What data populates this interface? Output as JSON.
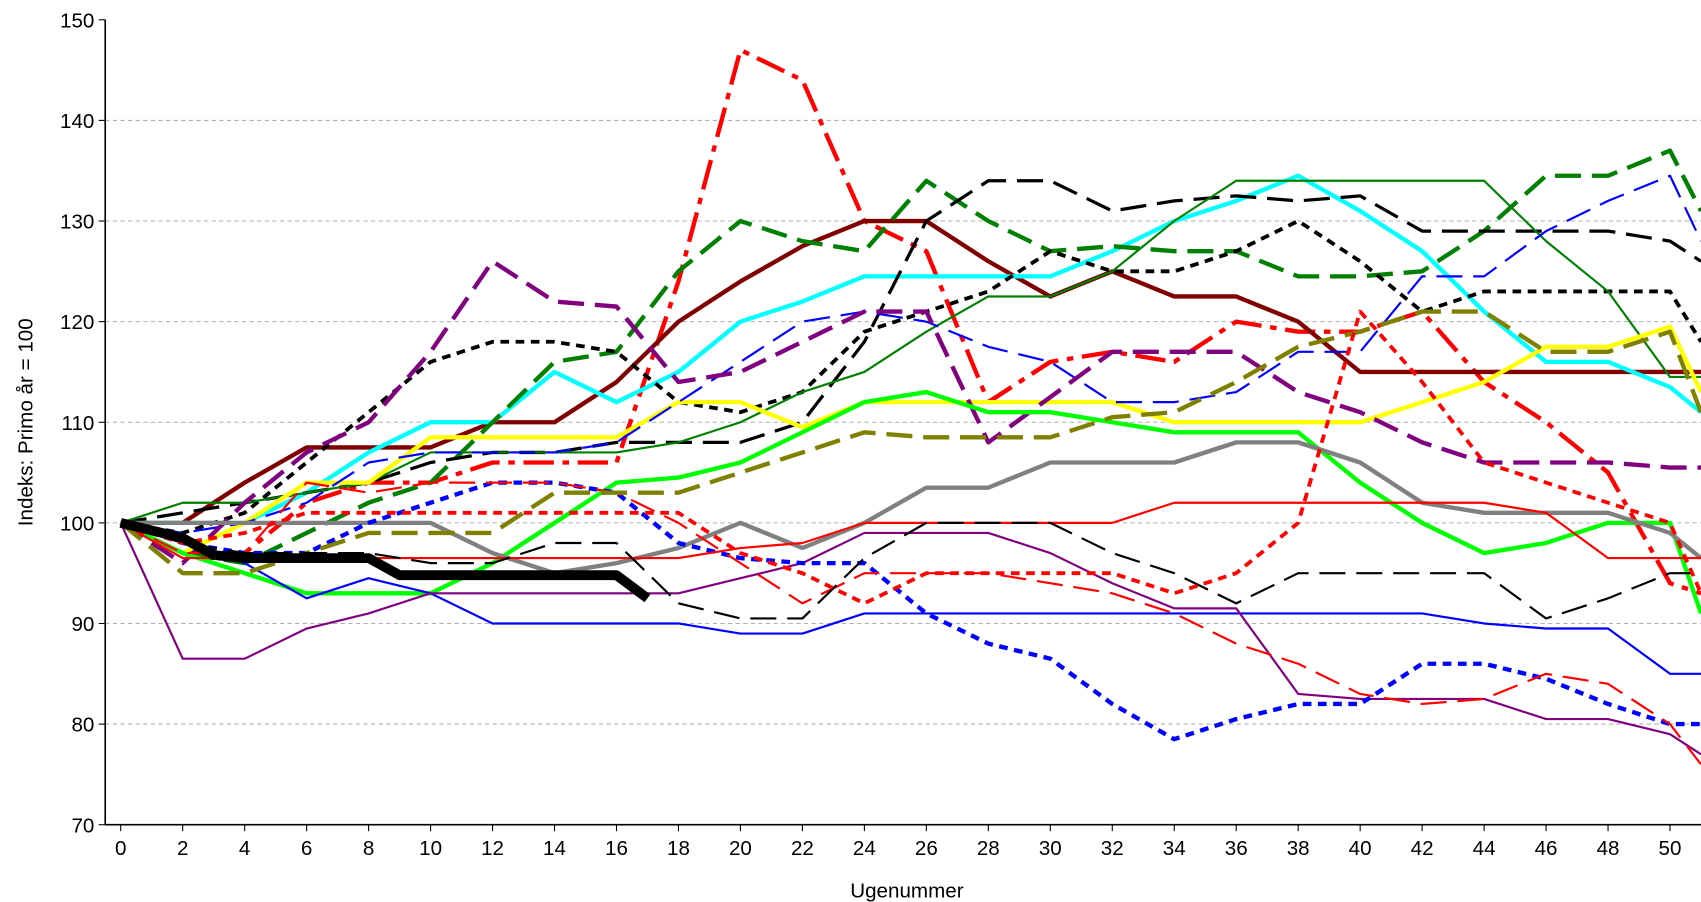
{
  "chart_data": {
    "type": "line",
    "xlabel": "Ugenummer",
    "ylabel": "Indeks: Primo år = 100",
    "x": [
      0,
      2,
      4,
      6,
      8,
      10,
      12,
      14,
      16,
      18,
      20,
      22,
      24,
      26,
      28,
      30,
      32,
      34,
      36,
      38,
      40,
      42,
      44,
      46,
      48,
      50,
      51
    ],
    "xlim": [
      -0.5,
      51
    ],
    "ylim": [
      70,
      150
    ],
    "xticks": [
      0,
      2,
      4,
      6,
      8,
      10,
      12,
      14,
      16,
      18,
      20,
      22,
      24,
      26,
      28,
      30,
      32,
      34,
      36,
      38,
      40,
      42,
      44,
      46,
      48,
      50
    ],
    "yticks": [
      70,
      80,
      90,
      100,
      110,
      120,
      130,
      140,
      150
    ],
    "grid": true,
    "series": [
      {
        "color": "#ff0000",
        "dash": "dashdot",
        "width": 4,
        "values": [
          100,
          97,
          97,
          102,
          104,
          104,
          106,
          106,
          106,
          124,
          147,
          144,
          130,
          127,
          112,
          116,
          117,
          116,
          120,
          119,
          119,
          121,
          114,
          110,
          105,
          94,
          93
        ]
      },
      {
        "color": "#800000",
        "dash": "solid",
        "width": 4,
        "values": [
          100,
          100,
          104,
          107.5,
          107.5,
          107.5,
          110,
          110,
          114,
          120,
          124,
          127.5,
          130,
          130,
          126,
          122.5,
          125,
          122.5,
          122.5,
          120,
          115,
          115,
          115,
          115,
          115,
          115,
          115
        ]
      },
      {
        "color": "#00ffff",
        "dash": "solid",
        "width": 4,
        "values": [
          100,
          100,
          100,
          103,
          107,
          110,
          110,
          115,
          112,
          115,
          120,
          122,
          124.5,
          124.5,
          124.5,
          124.5,
          127,
          130,
          132,
          134.5,
          131,
          127,
          121,
          116,
          116,
          113.5,
          111
        ]
      },
      {
        "color": "#008000",
        "dash": "longdash",
        "width": 4,
        "values": [
          100,
          97,
          96,
          99,
          102,
          104,
          110,
          116,
          117,
          125,
          130,
          128,
          127,
          134,
          130,
          127,
          127.5,
          127,
          127,
          124.5,
          124.5,
          125,
          129,
          134.5,
          134.5,
          137,
          131
        ]
      },
      {
        "color": "#000000",
        "dash": "longdash",
        "width": 3,
        "values": [
          100,
          101,
          102,
          103,
          104,
          106,
          107,
          107,
          108,
          108,
          108,
          110,
          118,
          130,
          134,
          134,
          131,
          132,
          132.5,
          132,
          132.5,
          129,
          129,
          129,
          129,
          128,
          126
        ]
      },
      {
        "color": "#000000",
        "dash": "dash",
        "width": 3.5,
        "values": [
          100,
          99,
          101,
          106,
          111,
          116,
          118,
          118,
          117,
          112,
          111,
          113,
          119,
          121,
          123,
          127,
          125,
          125,
          127,
          130,
          126,
          121,
          123,
          123,
          123,
          123,
          118
        ]
      },
      {
        "color": "#008000",
        "dash": "solid",
        "width": 2,
        "values": [
          100,
          102,
          102,
          103,
          104,
          107,
          107,
          107,
          107,
          108,
          110,
          113,
          115,
          119,
          122.5,
          122.5,
          125,
          130,
          134,
          134,
          134,
          134,
          134,
          128,
          123,
          114.5,
          114.5
        ]
      },
      {
        "color": "#ffff00",
        "dash": "solid",
        "width": 4,
        "values": [
          100,
          97,
          100,
          104,
          104,
          108.5,
          108.5,
          108.5,
          108.5,
          112,
          112,
          109.5,
          112,
          112,
          112,
          112,
          112,
          110,
          110,
          110,
          110,
          112,
          114,
          117.5,
          117.5,
          119.5,
          113
        ]
      },
      {
        "color": "#0000ff",
        "dash": "longdash",
        "width": 2,
        "values": [
          100,
          99,
          100,
          102,
          106,
          107,
          107,
          107,
          108,
          112,
          116,
          120,
          121,
          120,
          117.5,
          116,
          112,
          112,
          113,
          117,
          117,
          124.5,
          124.5,
          129,
          132,
          134.5,
          128
        ]
      },
      {
        "color": "#800080",
        "dash": "longdash",
        "width": 4,
        "values": [
          100,
          96,
          102,
          107,
          110,
          117,
          126,
          122,
          121.5,
          114,
          115,
          118,
          121,
          121,
          108,
          112.5,
          117,
          117,
          117,
          113,
          111,
          108,
          106,
          106,
          106,
          105.5,
          105.5
        ]
      },
      {
        "color": "#00ff00",
        "dash": "solid",
        "width": 4,
        "values": [
          100,
          97,
          95,
          93,
          93,
          93,
          96,
          100,
          104,
          104.5,
          106,
          109,
          112,
          113,
          111,
          111,
          110,
          109,
          109,
          109,
          104,
          100,
          97,
          98,
          100,
          100,
          91
        ]
      },
      {
        "color": "#808080",
        "dash": "solid",
        "width": 4,
        "values": [
          100,
          100,
          100,
          100,
          100,
          100,
          97,
          95,
          96,
          97.5,
          100,
          97.5,
          100,
          103.5,
          103.5,
          106,
          106,
          106,
          108,
          108,
          106,
          102,
          101,
          101,
          101,
          99,
          96.5
        ]
      },
      {
        "color": "#0000ff",
        "dash": "solid",
        "width": 2,
        "values": [
          100,
          98,
          96,
          92.5,
          94.5,
          93,
          90,
          90,
          90,
          90,
          89,
          89,
          91,
          91,
          91,
          91,
          91,
          91,
          91,
          91,
          91,
          91,
          90,
          89.5,
          89.5,
          85,
          85
        ]
      },
      {
        "color": "#800080",
        "dash": "solid",
        "width": 2,
        "values": [
          100,
          86.5,
          86.5,
          89.5,
          91,
          93,
          93,
          93,
          93,
          93,
          94.5,
          96,
          99,
          99,
          99,
          97,
          94,
          91.5,
          91.5,
          83,
          82.5,
          82.5,
          82.5,
          80.5,
          80.5,
          79,
          77
        ]
      },
      {
        "color": "#0000ff",
        "dash": "dash",
        "width": 4,
        "values": [
          100,
          98,
          97,
          97,
          100,
          102,
          104,
          104,
          103,
          98,
          96.5,
          96,
          96,
          91,
          88,
          86.5,
          82,
          78.5,
          80.5,
          82,
          82,
          86,
          86,
          84.5,
          82,
          80,
          80
        ]
      },
      {
        "color": "#ff0000",
        "dash": "longdash",
        "width": 2,
        "values": [
          100,
          97,
          97,
          104,
          103,
          104,
          104,
          104,
          103,
          100,
          96,
          92,
          95,
          95,
          95,
          94,
          93,
          91,
          88,
          86,
          83,
          82,
          82.5,
          85,
          84,
          80,
          76
        ]
      },
      {
        "color": "#ff0000",
        "dash": "solid",
        "width": 2,
        "values": [
          100,
          96.5,
          96.5,
          96.5,
          96.5,
          96.5,
          96.5,
          96.5,
          96.5,
          96.5,
          97.5,
          98,
          100,
          100,
          100,
          100,
          100,
          102,
          102,
          102,
          102,
          102,
          102,
          101,
          96.5,
          96.5,
          96.5
        ]
      },
      {
        "color": "#808000",
        "dash": "longdash",
        "width": 4,
        "values": [
          100,
          95,
          95,
          97,
          99,
          99,
          99,
          103,
          103,
          103,
          105,
          107,
          109,
          108.5,
          108.5,
          108.5,
          110.5,
          111,
          114,
          117.5,
          119,
          121,
          121,
          117,
          117,
          119,
          111
        ]
      },
      {
        "color": "#000000",
        "dash": "longdash",
        "width": 2,
        "values": [
          100,
          98,
          97,
          97,
          97,
          96,
          96,
          98,
          98,
          92,
          90.5,
          90.5,
          96.5,
          100,
          100,
          100,
          97,
          95,
          92,
          95,
          95,
          95,
          95,
          90.5,
          92.5,
          95,
          95
        ]
      },
      {
        "color": "#ff0000",
        "dash": "dash",
        "width": 3.5,
        "values": [
          100,
          98,
          99,
          101,
          101,
          101,
          101,
          101,
          101,
          101,
          97,
          95,
          92,
          95,
          95,
          95,
          95,
          93,
          95,
          100,
          121,
          114,
          106,
          104,
          102,
          100,
          93
        ]
      },
      {
        "color": "#000000",
        "dash": "solid",
        "width": 9,
        "x": [
          0,
          2,
          3,
          4,
          8,
          9,
          16,
          17
        ],
        "values": [
          100,
          98.5,
          96.8,
          96.5,
          96.5,
          94.8,
          94.8,
          92.5
        ]
      }
    ]
  }
}
